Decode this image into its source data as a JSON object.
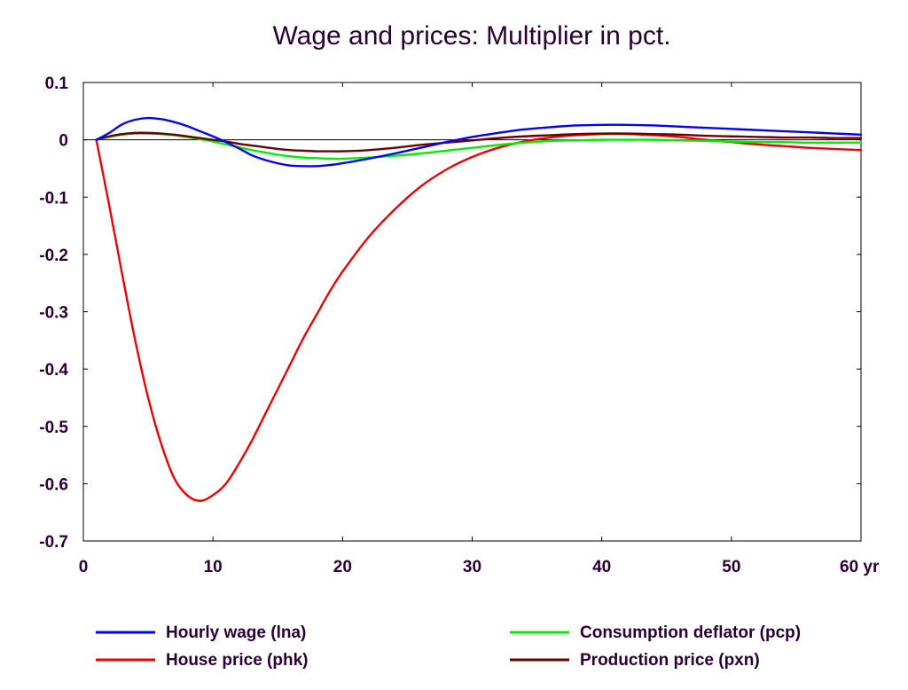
{
  "chart_data": {
    "type": "line",
    "title": "Wage and prices: Multiplier in pct.",
    "x_unit_label": "yr",
    "xlim": [
      0,
      60
    ],
    "ylim": [
      -0.7,
      0.1
    ],
    "x_ticks": [
      0,
      10,
      20,
      30,
      40,
      50,
      60
    ],
    "y_ticks": [
      0.1,
      0,
      -0.1,
      -0.2,
      -0.3,
      -0.4,
      -0.5,
      -0.6,
      -0.7
    ],
    "x_tick_labels": [
      "0",
      "10",
      "20",
      "30",
      "40",
      "50",
      "60 yr"
    ],
    "y_tick_labels": [
      "0.1",
      "0",
      "-0.1",
      "-0.2",
      "-0.3",
      "-0.4",
      "-0.5",
      "-0.6",
      "-0.7"
    ],
    "zero_line": true,
    "grid": false,
    "legend_position": "bottom",
    "series": [
      {
        "name": "Hourly wage (lna)",
        "color": "#0000ff",
        "x": [
          1,
          2,
          3,
          4,
          5,
          6,
          7,
          8,
          9,
          10,
          11,
          12,
          13,
          14,
          15,
          16,
          17,
          18,
          19,
          20,
          22,
          24,
          26,
          28,
          30,
          32,
          34,
          36,
          38,
          40,
          42,
          44,
          46,
          48,
          50,
          52,
          54,
          56,
          58,
          60
        ],
        "y": [
          0,
          0.012,
          0.027,
          0.035,
          0.038,
          0.036,
          0.031,
          0.024,
          0.015,
          0.006,
          -0.004,
          -0.015,
          -0.027,
          -0.035,
          -0.041,
          -0.045,
          -0.046,
          -0.046,
          -0.044,
          -0.041,
          -0.033,
          -0.024,
          -0.014,
          -0.004,
          0.005,
          0.012,
          0.018,
          0.022,
          0.025,
          0.026,
          0.026,
          0.025,
          0.023,
          0.021,
          0.019,
          0.017,
          0.015,
          0.013,
          0.011,
          0.009
        ]
      },
      {
        "name": "Consumption deflator (pcp)",
        "color": "#00ee00",
        "x": [
          1,
          2,
          3,
          4,
          5,
          6,
          7,
          8,
          9,
          10,
          11,
          12,
          13,
          14,
          15,
          16,
          17,
          18,
          19,
          20,
          22,
          24,
          26,
          28,
          30,
          32,
          34,
          36,
          38,
          40,
          42,
          44,
          46,
          48,
          50,
          52,
          54,
          56,
          58,
          60
        ],
        "y": [
          0,
          0.005,
          0.009,
          0.011,
          0.011,
          0.01,
          0.008,
          0.005,
          0.001,
          -0.003,
          -0.008,
          -0.013,
          -0.018,
          -0.022,
          -0.026,
          -0.029,
          -0.031,
          -0.032,
          -0.033,
          -0.033,
          -0.031,
          -0.028,
          -0.024,
          -0.019,
          -0.014,
          -0.009,
          -0.005,
          -0.002,
          -0.001,
          0.0,
          0.0,
          0.0,
          -0.001,
          -0.002,
          -0.003,
          -0.004,
          -0.004,
          -0.005,
          -0.005,
          -0.005
        ]
      },
      {
        "name": "House price (phk)",
        "color": "#ee0000",
        "x": [
          1,
          2,
          3,
          4,
          5,
          6,
          7,
          8,
          9,
          10,
          11,
          12,
          13,
          14,
          15,
          16,
          17,
          18,
          19,
          20,
          22,
          24,
          26,
          28,
          30,
          32,
          34,
          36,
          38,
          40,
          42,
          44,
          46,
          48,
          50,
          52,
          54,
          56,
          58,
          60
        ],
        "y": [
          0,
          -0.115,
          -0.235,
          -0.35,
          -0.45,
          -0.53,
          -0.59,
          -0.62,
          -0.63,
          -0.62,
          -0.6,
          -0.565,
          -0.525,
          -0.48,
          -0.435,
          -0.39,
          -0.345,
          -0.305,
          -0.265,
          -0.23,
          -0.17,
          -0.122,
          -0.082,
          -0.052,
          -0.03,
          -0.014,
          -0.003,
          0.004,
          0.008,
          0.01,
          0.01,
          0.008,
          0.005,
          0.0,
          -0.004,
          -0.008,
          -0.011,
          -0.014,
          -0.016,
          -0.018
        ]
      },
      {
        "name": "Production price (pxn)",
        "color": "#6b0000",
        "x": [
          1,
          2,
          3,
          4,
          5,
          6,
          7,
          8,
          9,
          10,
          11,
          12,
          13,
          14,
          15,
          16,
          17,
          18,
          19,
          20,
          22,
          24,
          26,
          28,
          30,
          32,
          34,
          36,
          38,
          40,
          42,
          44,
          46,
          48,
          50,
          52,
          54,
          56,
          58,
          60
        ],
        "y": [
          0,
          0.006,
          0.01,
          0.012,
          0.012,
          0.011,
          0.009,
          0.006,
          0.003,
          0.0,
          -0.003,
          -0.007,
          -0.01,
          -0.013,
          -0.016,
          -0.018,
          -0.019,
          -0.02,
          -0.02,
          -0.02,
          -0.018,
          -0.014,
          -0.009,
          -0.005,
          -0.001,
          0.003,
          0.006,
          0.008,
          0.01,
          0.011,
          0.011,
          0.01,
          0.009,
          0.007,
          0.006,
          0.005,
          0.004,
          0.004,
          0.003,
          0.003
        ]
      }
    ],
    "legend": [
      {
        "label": "Hourly wage (lna)",
        "color": "#0000ff"
      },
      {
        "label": "Consumption deflator (pcp)",
        "color": "#00ee00"
      },
      {
        "label": "House price (phk)",
        "color": "#ee0000"
      },
      {
        "label": "Production price (pxn)",
        "color": "#6b0000"
      }
    ]
  }
}
